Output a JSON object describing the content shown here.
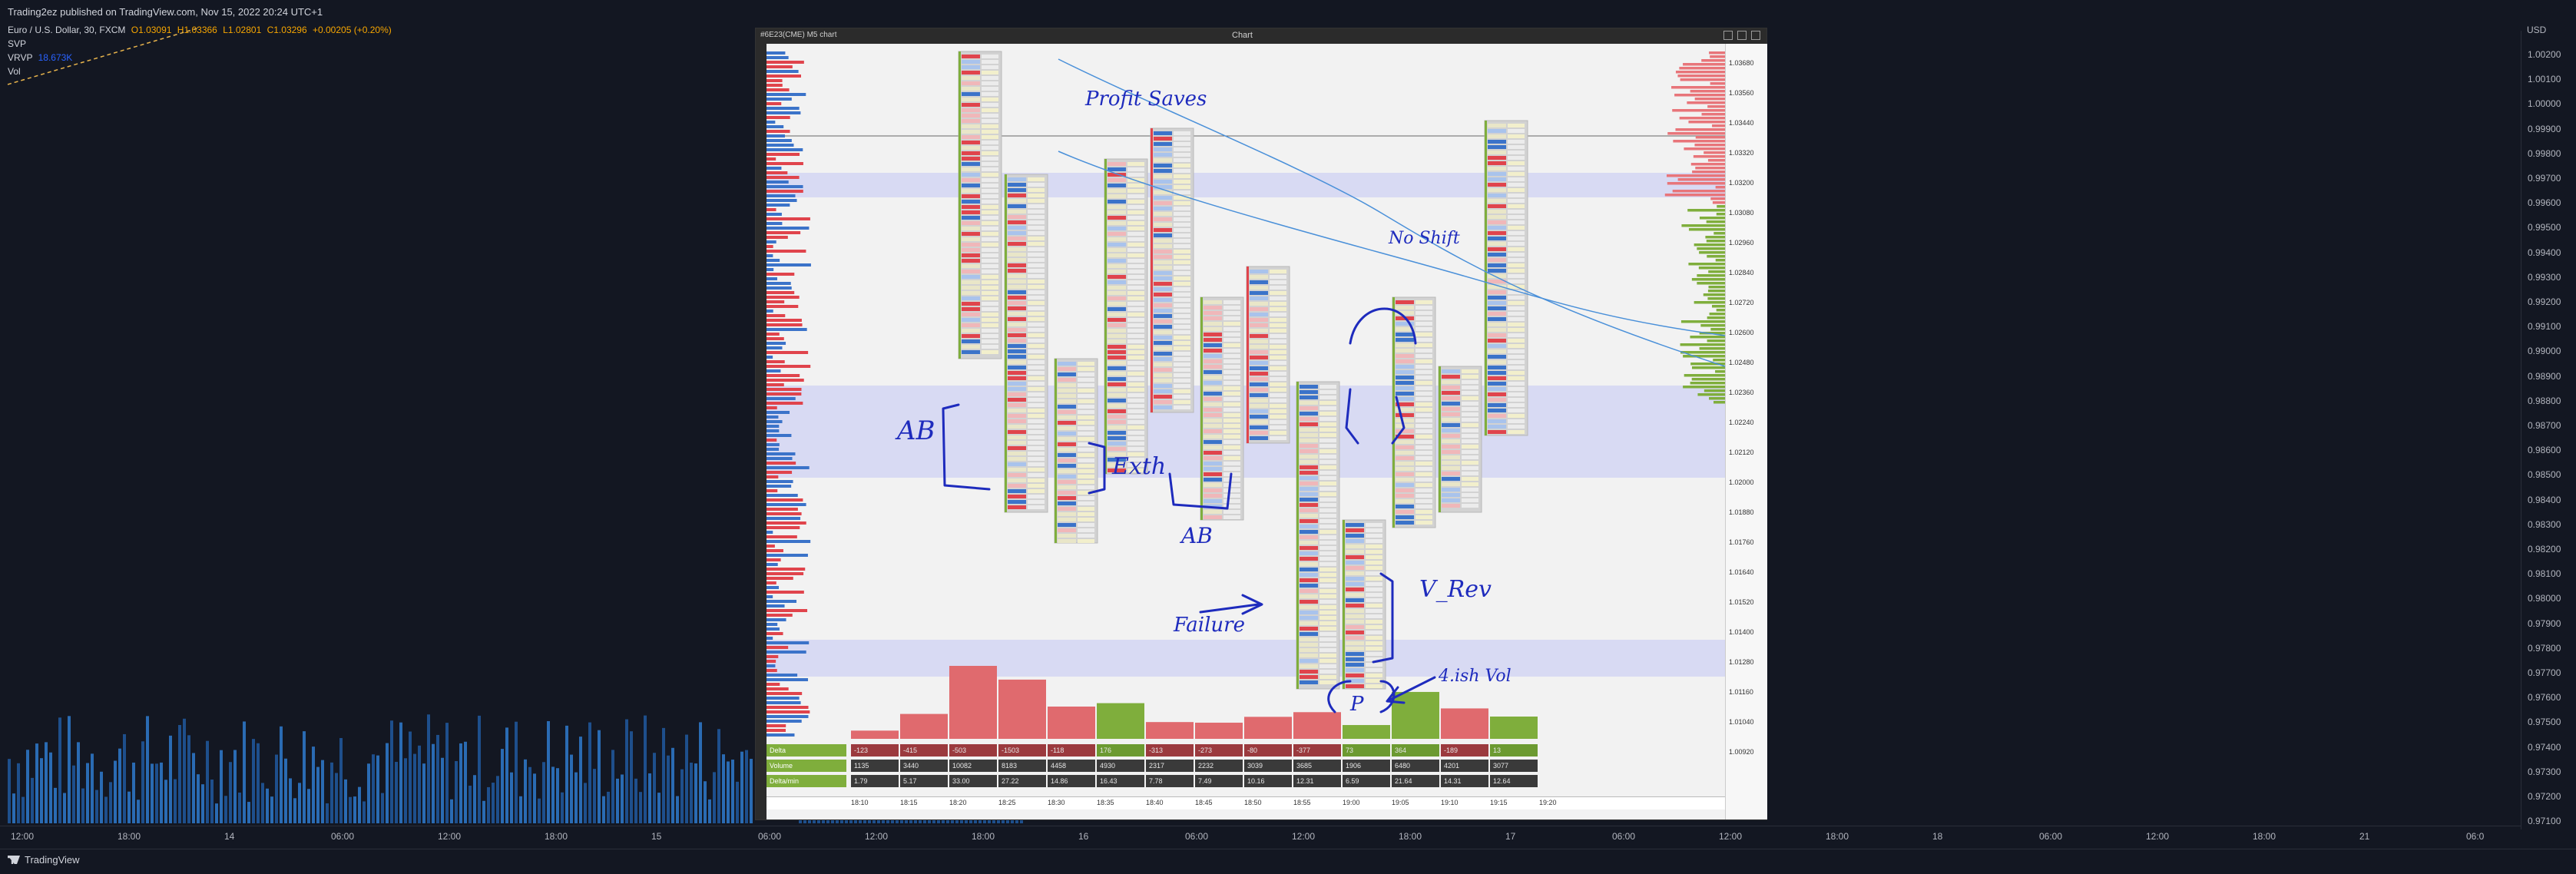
{
  "publisher_line": "Trading2ez published on TradingView.com, Nov 15, 2022 20:24 UTC+1",
  "legend": {
    "symbol": "Euro / U.S. Dollar, 30, FXCM",
    "open": "O1.03091",
    "high": "H1.03366",
    "low": "L1.02801",
    "close": "C1.03296",
    "change": "+0.00205 (+0.20%)",
    "svp_label": "SVP",
    "vrvp_label": "VRVP",
    "vrvp_value": "18.673K",
    "vol_label": "Vol"
  },
  "price_axis": {
    "currency": "USD",
    "labels": [
      "1.00200",
      "1.00100",
      "1.00000",
      "0.99900",
      "0.99800",
      "0.99700",
      "0.99600",
      "0.99500",
      "0.99400",
      "0.99300",
      "0.99200",
      "0.99100",
      "0.99000",
      "0.98900",
      "0.98800",
      "0.98700",
      "0.98600",
      "0.98500",
      "0.98400",
      "0.98300",
      "0.98200",
      "0.98100",
      "0.98000",
      "0.97900",
      "0.97800",
      "0.97700",
      "0.97600",
      "0.97500",
      "0.97400",
      "0.97300",
      "0.97200",
      "0.97100"
    ]
  },
  "time_axis": {
    "labels": [
      "12:00",
      "18:00",
      "14",
      "06:00",
      "12:00",
      "18:00",
      "15",
      "06:00",
      "12:00",
      "18:00",
      "16",
      "06:00",
      "12:00",
      "18:00",
      "17",
      "06:00",
      "12:00",
      "18:00",
      "18",
      "06:00",
      "12:00",
      "18:00",
      "21",
      "06:0"
    ]
  },
  "brand": "TradingView",
  "panel": {
    "title": "Chart",
    "symbol_bar": "#6E23(CME)  M5 chart",
    "price_labels": [
      "1.03680",
      "1.03560",
      "1.03440",
      "1.03320",
      "1.03200",
      "1.03080",
      "1.02960",
      "1.02840",
      "1.02720",
      "1.02600",
      "1.02480",
      "1.02360",
      "1.02240",
      "1.02120",
      "1.02000",
      "1.01880",
      "1.01760",
      "1.01640",
      "1.01520",
      "1.01400",
      "1.01280",
      "1.01160",
      "1.01040",
      "1.00920"
    ],
    "time_labels": [
      "18:10",
      "18:15",
      "18:20",
      "18:25",
      "18:30",
      "18:35",
      "18:40",
      "18:45",
      "18:50",
      "18:55",
      "19:00",
      "19:05",
      "19:10",
      "19:15",
      "19:20"
    ],
    "stats": {
      "rows": [
        "Delta",
        "Volume",
        "Delta/min"
      ],
      "delta": [
        "-123",
        "-415",
        "-503",
        "-1503",
        "-118",
        "176",
        "-313",
        "-273",
        "-80",
        "-377",
        "73",
        "364",
        "-189",
        "13"
      ],
      "volume": [
        "1135",
        "3440",
        "10082",
        "8183",
        "4458",
        "4930",
        "2317",
        "2232",
        "3039",
        "3685",
        "1906",
        "6480",
        "4201",
        "3077"
      ],
      "delta_min": [
        "1.79",
        "5.17",
        "33.00",
        "27.22",
        "14.86",
        "16.43",
        "7.78",
        "7.49",
        "10.16",
        "12.31",
        "6.59",
        "21.64",
        "14.31",
        "12.64"
      ]
    }
  },
  "annotations": {
    "profit_saves": "Profit Saves",
    "no_shift": "No Shift",
    "ab_left": "AB",
    "exth": "Exth",
    "ab_mid": "AB",
    "failure": "Failure",
    "v_rev": "V_Rev",
    "highest_vol": "4.ish Vol",
    "p_label": "P"
  }
}
